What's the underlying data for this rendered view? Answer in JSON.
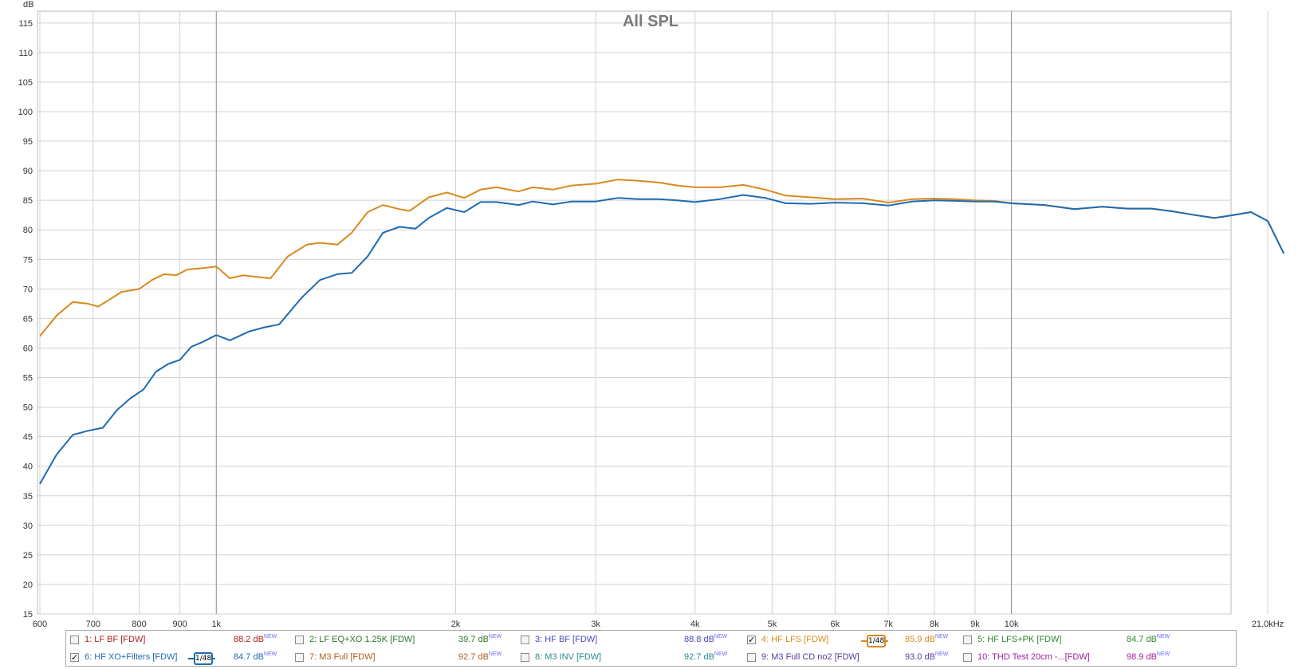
{
  "chart_data": {
    "type": "line",
    "title": "All SPL",
    "ylabel": "dB",
    "xlabel": "",
    "x_scale": "log",
    "xlim": [
      600,
      21000
    ],
    "ylim": [
      15,
      117
    ],
    "grid": true,
    "y_ticks": [
      "115",
      "110",
      "105",
      "100",
      "95",
      "90",
      "85",
      "80",
      "75",
      "70",
      "65",
      "60",
      "55",
      "50",
      "45",
      "40",
      "35",
      "30",
      "25",
      "20",
      "15"
    ],
    "x_ticks": [
      {
        "v": 600,
        "label": "600"
      },
      {
        "v": 700,
        "label": "700"
      },
      {
        "v": 800,
        "label": "800"
      },
      {
        "v": 900,
        "label": "900"
      },
      {
        "v": 1000,
        "label": "1k"
      },
      {
        "v": 2000,
        "label": "2k"
      },
      {
        "v": 3000,
        "label": "3k"
      },
      {
        "v": 4000,
        "label": "4k"
      },
      {
        "v": 5000,
        "label": "5k"
      },
      {
        "v": 6000,
        "label": "6k"
      },
      {
        "v": 7000,
        "label": "7k"
      },
      {
        "v": 8000,
        "label": "8k"
      },
      {
        "v": 9000,
        "label": "9k"
      },
      {
        "v": 10000,
        "label": "10k"
      },
      {
        "v": 21000,
        "label": "21.0kHz"
      }
    ],
    "series": [
      {
        "name": "4: HF LFS [FDW]",
        "color": "#d98a1f",
        "points": [
          [
            600,
            62
          ],
          [
            630,
            65.5
          ],
          [
            660,
            67.8
          ],
          [
            690,
            67.5
          ],
          [
            710,
            67
          ],
          [
            730,
            68
          ],
          [
            760,
            69.5
          ],
          [
            800,
            70
          ],
          [
            830,
            71.5
          ],
          [
            860,
            72.5
          ],
          [
            890,
            72.3
          ],
          [
            920,
            73.3
          ],
          [
            960,
            73.5
          ],
          [
            1000,
            73.8
          ],
          [
            1040,
            71.8
          ],
          [
            1080,
            72.3
          ],
          [
            1130,
            72
          ],
          [
            1170,
            71.8
          ],
          [
            1230,
            75.5
          ],
          [
            1300,
            77.5
          ],
          [
            1350,
            77.8
          ],
          [
            1420,
            77.5
          ],
          [
            1480,
            79.5
          ],
          [
            1550,
            83
          ],
          [
            1620,
            84.2
          ],
          [
            1700,
            83.5
          ],
          [
            1750,
            83.2
          ],
          [
            1850,
            85.5
          ],
          [
            1950,
            86.3
          ],
          [
            2050,
            85.4
          ],
          [
            2150,
            86.8
          ],
          [
            2250,
            87.2
          ],
          [
            2400,
            86.5
          ],
          [
            2500,
            87.2
          ],
          [
            2650,
            86.8
          ],
          [
            2800,
            87.5
          ],
          [
            3000,
            87.8
          ],
          [
            3200,
            88.5
          ],
          [
            3400,
            88.3
          ],
          [
            3600,
            88
          ],
          [
            3800,
            87.5
          ],
          [
            4000,
            87.2
          ],
          [
            4300,
            87.2
          ],
          [
            4600,
            87.6
          ],
          [
            4900,
            86.8
          ],
          [
            5200,
            85.8
          ],
          [
            5600,
            85.5
          ],
          [
            6000,
            85.2
          ],
          [
            6500,
            85.3
          ],
          [
            7000,
            84.6
          ],
          [
            7500,
            85.2
          ],
          [
            8000,
            85.3
          ],
          [
            8500,
            85.2
          ],
          [
            9000,
            85
          ],
          [
            9500,
            84.9
          ],
          [
            10000,
            84.5
          ],
          [
            11000,
            84.2
          ],
          [
            12000,
            83.5
          ],
          [
            13000,
            83.9
          ],
          [
            14000,
            83.6
          ],
          [
            15000,
            83.6
          ],
          [
            16000,
            83.1
          ],
          [
            17000,
            82.5
          ],
          [
            18000,
            82
          ],
          [
            19000,
            82.5
          ],
          [
            20000,
            83
          ],
          [
            21000,
            81.5
          ],
          [
            22000,
            76
          ]
        ]
      },
      {
        "name": "6: HF XO+Filters [FDW]",
        "color": "#1f6bb0",
        "points": [
          [
            600,
            37
          ],
          [
            630,
            42
          ],
          [
            660,
            45.3
          ],
          [
            690,
            46
          ],
          [
            720,
            46.5
          ],
          [
            750,
            49.5
          ],
          [
            780,
            51.5
          ],
          [
            810,
            53
          ],
          [
            840,
            56
          ],
          [
            870,
            57.3
          ],
          [
            900,
            58
          ],
          [
            930,
            60.2
          ],
          [
            960,
            61
          ],
          [
            1000,
            62.2
          ],
          [
            1040,
            61.3
          ],
          [
            1100,
            62.8
          ],
          [
            1150,
            63.5
          ],
          [
            1200,
            64
          ],
          [
            1280,
            68.5
          ],
          [
            1350,
            71.5
          ],
          [
            1420,
            72.5
          ],
          [
            1480,
            72.7
          ],
          [
            1550,
            75.5
          ],
          [
            1620,
            79.5
          ],
          [
            1700,
            80.5
          ],
          [
            1780,
            80.2
          ],
          [
            1850,
            82
          ],
          [
            1950,
            83.7
          ],
          [
            2050,
            83
          ],
          [
            2150,
            84.7
          ],
          [
            2250,
            84.7
          ],
          [
            2400,
            84.2
          ],
          [
            2500,
            84.8
          ],
          [
            2650,
            84.3
          ],
          [
            2800,
            84.8
          ],
          [
            3000,
            84.8
          ],
          [
            3200,
            85.4
          ],
          [
            3400,
            85.2
          ],
          [
            3600,
            85.2
          ],
          [
            3800,
            85
          ],
          [
            4000,
            84.7
          ],
          [
            4300,
            85.2
          ],
          [
            4600,
            85.9
          ],
          [
            4900,
            85.4
          ],
          [
            5200,
            84.5
          ],
          [
            5600,
            84.4
          ],
          [
            6000,
            84.6
          ],
          [
            6500,
            84.5
          ],
          [
            7000,
            84.1
          ],
          [
            7500,
            84.8
          ],
          [
            8000,
            85
          ],
          [
            8500,
            84.9
          ],
          [
            9000,
            84.8
          ],
          [
            9500,
            84.8
          ],
          [
            10000,
            84.5
          ],
          [
            11000,
            84.2
          ],
          [
            12000,
            83.5
          ],
          [
            13000,
            83.9
          ],
          [
            14000,
            83.6
          ],
          [
            15000,
            83.6
          ],
          [
            16000,
            83.1
          ],
          [
            17000,
            82.5
          ],
          [
            18000,
            82
          ],
          [
            19000,
            82.5
          ],
          [
            20000,
            83
          ],
          [
            21000,
            81.5
          ],
          [
            22000,
            76
          ]
        ]
      }
    ]
  },
  "legend": {
    "items": [
      {
        "name": "1: LF BF [FDW]",
        "value": "88.2 dB",
        "new": "NEW",
        "color": "#b02020",
        "checked": false
      },
      {
        "name": "2: LF EQ+XO 1.25K [FDW]",
        "value": "39.7 dB",
        "new": "NEW",
        "color": "#2a7a2a",
        "checked": false
      },
      {
        "name": "3: HF BF [FDW]",
        "value": "88.8 dB",
        "new": "NEW",
        "color": "#4a4ab8",
        "checked": false
      },
      {
        "name": "4: HF LFS [FDW]",
        "value": "85.9 dB",
        "new": "NEW",
        "color": "#d98a1f",
        "checked": true,
        "smoothing": "1/48"
      },
      {
        "name": "5: HF LFS+PK [FDW]",
        "value": "84.7 dB",
        "new": "NEW",
        "color": "#2a8a2a",
        "checked": false
      },
      {
        "name": "6: HF XO+Filters [FDW]",
        "value": "84.7 dB",
        "new": "NEW",
        "color": "#1f6bb0",
        "checked": true,
        "smoothing": "1/48"
      },
      {
        "name": "7: M3 Full [FDW]",
        "value": "92.7 dB",
        "new": "NEW",
        "color": "#b0601a",
        "checked": false
      },
      {
        "name": "8: M3 INV [FDW]",
        "value": "92.7 dB",
        "new": "NEW",
        "color": "#2a8a8a",
        "checked": false
      },
      {
        "name": "9: M3 Full CD no2 [FDW]",
        "value": "93.0 dB",
        "new": "NEW",
        "color": "#5a3aa0",
        "checked": false
      },
      {
        "name": "10: THD Test 20cm -...[FDW]",
        "value": "98.9 dB",
        "new": "NEW",
        "color": "#a020a0",
        "checked": false
      }
    ],
    "check_mark": "✓"
  }
}
